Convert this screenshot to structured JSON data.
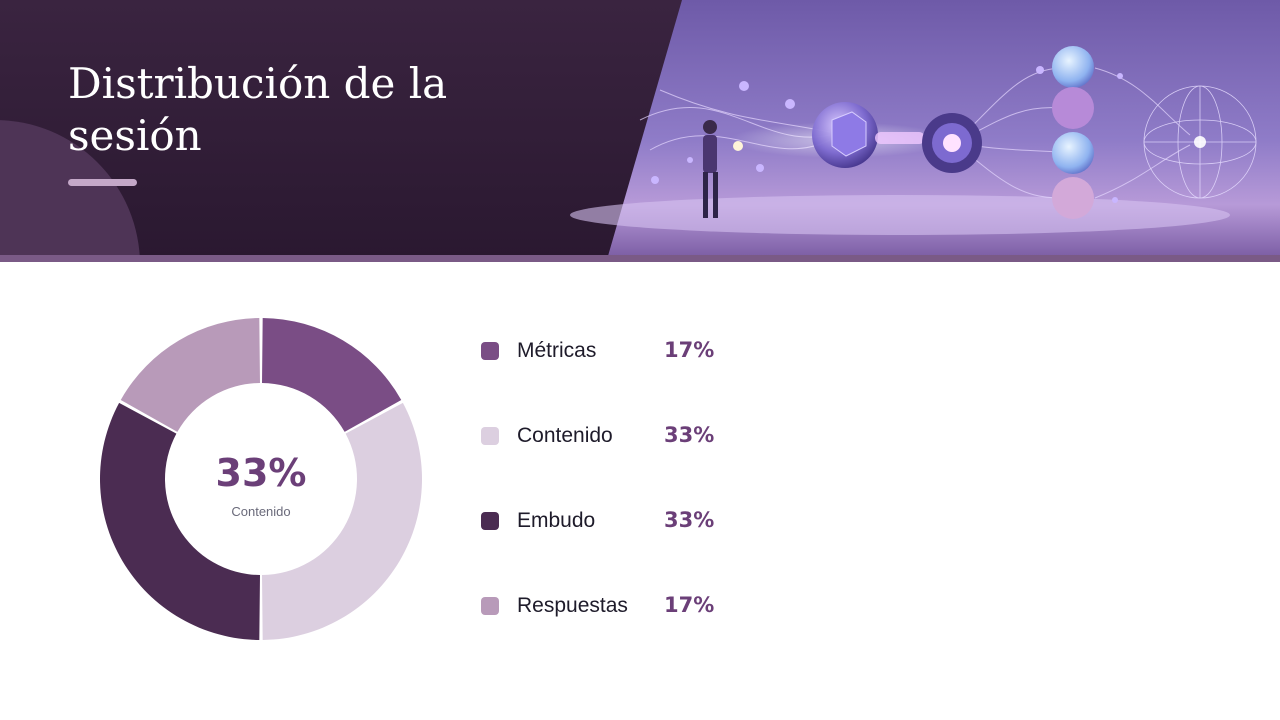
{
  "header": {
    "title": "Distribución de la sesión"
  },
  "colors": {
    "metricas": "#7a4d85",
    "contenido": "#dccfe0",
    "embudo": "#4b2c52",
    "respuestas": "#b89ab9",
    "accent_text": "#6b3f78"
  },
  "chart_data": {
    "type": "pie",
    "variant": "donut",
    "categories": [
      "Métricas",
      "Contenido",
      "Embudo",
      "Respuestas"
    ],
    "values": [
      17,
      33,
      33,
      17
    ],
    "value_labels": [
      "17%",
      "33%",
      "33%",
      "17%"
    ],
    "colors": [
      "#7a4d85",
      "#dccfe0",
      "#4b2c52",
      "#b89ab9"
    ],
    "center": {
      "value": "33%",
      "label": "Contenido"
    },
    "legend_position": "right"
  }
}
